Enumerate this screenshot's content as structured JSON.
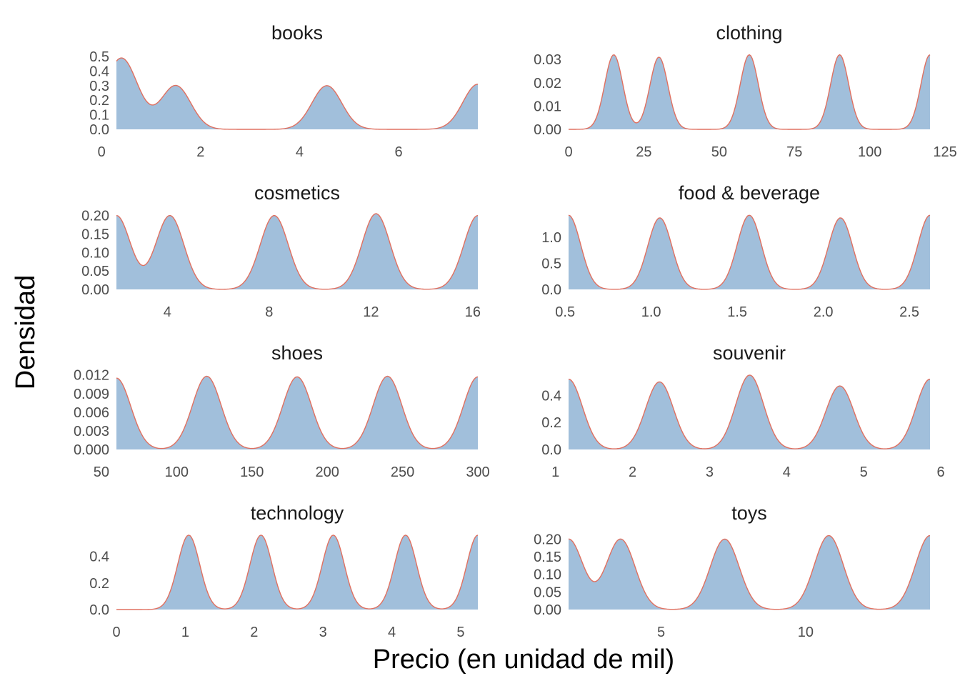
{
  "chart_data": {
    "type": "area",
    "layout": "facet-grid-4x2",
    "xlabel": "Precio (en unidad de mil)",
    "ylabel": "Densidad",
    "colors": {
      "fill": "#a1bfdb",
      "line": "#e07060"
    },
    "grid": false,
    "panels": [
      {
        "title": "books",
        "xlim": [
          0.3,
          7.6
        ],
        "xaxis_start": 0,
        "ylim": [
          0,
          0.52
        ],
        "xticks": [
          0,
          2,
          4,
          6
        ],
        "yticks": [
          0.0,
          0.1,
          0.2,
          0.3,
          0.4,
          0.5
        ],
        "ytick_labels": [
          "0.0",
          "0.1",
          "0.2",
          "0.3",
          "0.4",
          "0.5"
        ],
        "peaks": [
          {
            "x": 0.4,
            "height": 0.49,
            "sd": 0.33
          },
          {
            "x": 1.5,
            "height": 0.3,
            "sd": 0.3
          },
          {
            "x": 4.55,
            "height": 0.3,
            "sd": 0.3
          },
          {
            "x": 7.6,
            "height": 0.31,
            "sd": 0.3
          }
        ]
      },
      {
        "title": "clothing",
        "xlim": [
          0,
          120
        ],
        "xaxis_start": 0,
        "ylim": [
          0,
          0.0325
        ],
        "xticks": [
          0,
          25,
          50,
          75,
          100,
          125
        ],
        "yticks": [
          0.0,
          0.01,
          0.02,
          0.03
        ],
        "ytick_labels": [
          "0.00",
          "0.01",
          "0.02",
          "0.03"
        ],
        "peaks": [
          {
            "x": 15,
            "height": 0.032,
            "sd": 3.0
          },
          {
            "x": 30,
            "height": 0.031,
            "sd": 3.0
          },
          {
            "x": 60,
            "height": 0.032,
            "sd": 3.0
          },
          {
            "x": 90,
            "height": 0.032,
            "sd": 3.0
          },
          {
            "x": 120,
            "height": 0.032,
            "sd": 3.0
          }
        ]
      },
      {
        "title": "cosmetics",
        "xlim": [
          2,
          16.2
        ],
        "xaxis_start": 2,
        "ylim": [
          0,
          0.205
        ],
        "xticks": [
          4,
          8,
          12,
          16
        ],
        "yticks": [
          0.0,
          0.05,
          0.1,
          0.15,
          0.2
        ],
        "ytick_labels": [
          "0.00",
          "0.05",
          "0.10",
          "0.15",
          "0.20"
        ],
        "peaks": [
          {
            "x": 2.0,
            "height": 0.2,
            "sd": 0.55
          },
          {
            "x": 4.1,
            "height": 0.2,
            "sd": 0.55
          },
          {
            "x": 8.2,
            "height": 0.2,
            "sd": 0.55
          },
          {
            "x": 12.2,
            "height": 0.205,
            "sd": 0.55
          },
          {
            "x": 16.2,
            "height": 0.2,
            "sd": 0.55
          }
        ]
      },
      {
        "title": "food & beverage",
        "xlim": [
          0.52,
          2.62
        ],
        "xaxis_start": 0.5,
        "ylim": [
          0,
          1.45
        ],
        "xticks": [
          0.5,
          1.0,
          1.5,
          2.0,
          2.5
        ],
        "xtick_labels": [
          "0.5",
          "1.0",
          "1.5",
          "2.0",
          "2.5"
        ],
        "yticks": [
          0.0,
          0.5,
          1.0
        ],
        "ytick_labels": [
          "0.0",
          "0.5",
          "1.0"
        ],
        "peaks": [
          {
            "x": 0.52,
            "height": 1.42,
            "sd": 0.07
          },
          {
            "x": 1.05,
            "height": 1.37,
            "sd": 0.07
          },
          {
            "x": 1.57,
            "height": 1.42,
            "sd": 0.07
          },
          {
            "x": 2.1,
            "height": 1.37,
            "sd": 0.07
          },
          {
            "x": 2.62,
            "height": 1.42,
            "sd": 0.07
          }
        ]
      },
      {
        "title": "shoes",
        "xlim": [
          60,
          300
        ],
        "xaxis_start": 50,
        "ylim": [
          0,
          0.0122
        ],
        "xticks": [
          50,
          100,
          150,
          200,
          250,
          300
        ],
        "yticks": [
          0.0,
          0.003,
          0.006,
          0.009,
          0.012
        ],
        "ytick_labels": [
          "0.000",
          "0.003",
          "0.006",
          "0.009",
          "0.012"
        ],
        "peaks": [
          {
            "x": 60,
            "height": 0.0115,
            "sd": 9.5
          },
          {
            "x": 120,
            "height": 0.0118,
            "sd": 9.5
          },
          {
            "x": 180,
            "height": 0.0117,
            "sd": 9.5
          },
          {
            "x": 240,
            "height": 0.0118,
            "sd": 9.5
          },
          {
            "x": 300,
            "height": 0.0117,
            "sd": 9.5
          }
        ]
      },
      {
        "title": "souvenir",
        "xlim": [
          1.17,
          5.86
        ],
        "xaxis_start": 1,
        "ylim": [
          0,
          0.56
        ],
        "xticks": [
          1,
          2,
          3,
          4,
          5,
          6
        ],
        "yticks": [
          0.0,
          0.2,
          0.4
        ],
        "ytick_labels": [
          "0.0",
          "0.2",
          "0.4"
        ],
        "peaks": [
          {
            "x": 1.17,
            "height": 0.52,
            "sd": 0.18
          },
          {
            "x": 2.35,
            "height": 0.5,
            "sd": 0.18
          },
          {
            "x": 3.52,
            "height": 0.55,
            "sd": 0.18
          },
          {
            "x": 4.69,
            "height": 0.47,
            "sd": 0.18
          },
          {
            "x": 5.86,
            "height": 0.52,
            "sd": 0.18
          }
        ]
      },
      {
        "title": "technology",
        "xlim": [
          0,
          5.25
        ],
        "xaxis_start": 0,
        "ylim": [
          0,
          0.57
        ],
        "xticks": [
          0,
          1,
          2,
          3,
          4,
          5
        ],
        "yticks": [
          0.0,
          0.2,
          0.4
        ],
        "ytick_labels": [
          "0.0",
          "0.2",
          "0.4"
        ],
        "peaks": [
          {
            "x": 1.05,
            "height": 0.56,
            "sd": 0.16
          },
          {
            "x": 2.1,
            "height": 0.56,
            "sd": 0.16
          },
          {
            "x": 3.15,
            "height": 0.56,
            "sd": 0.16
          },
          {
            "x": 4.2,
            "height": 0.56,
            "sd": 0.16
          },
          {
            "x": 5.25,
            "height": 0.56,
            "sd": 0.16
          }
        ]
      },
      {
        "title": "toys",
        "xlim": [
          1.8,
          14.3
        ],
        "xaxis_start": 1.8,
        "ylim": [
          0,
          0.215
        ],
        "xticks": [
          5,
          10
        ],
        "yticks": [
          0.0,
          0.05,
          0.1,
          0.15,
          0.2
        ],
        "ytick_labels": [
          "0.00",
          "0.05",
          "0.10",
          "0.15",
          "0.20"
        ],
        "peaks": [
          {
            "x": 1.8,
            "height": 0.2,
            "sd": 0.5
          },
          {
            "x": 3.6,
            "height": 0.2,
            "sd": 0.5
          },
          {
            "x": 7.2,
            "height": 0.2,
            "sd": 0.5
          },
          {
            "x": 10.8,
            "height": 0.21,
            "sd": 0.5
          },
          {
            "x": 14.3,
            "height": 0.21,
            "sd": 0.5
          }
        ]
      }
    ]
  }
}
